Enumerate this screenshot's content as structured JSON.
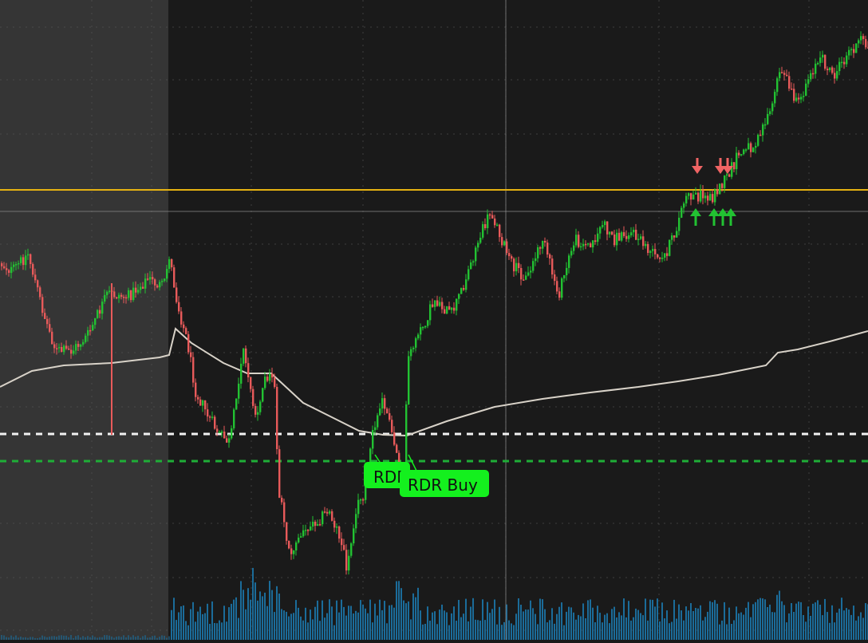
{
  "chart_data": {
    "type": "candlestick",
    "title": "",
    "xlabel": "",
    "ylabel": "",
    "premarket_shaded": true,
    "grid": true,
    "colors": {
      "up": "#22c232",
      "down": "#e85a5a",
      "vwap": "#d8d2c8",
      "resistance": "#e6b212",
      "white_level": "#f2f2f2",
      "green_level": "#1fae37",
      "volume": "#1b6c9a",
      "label_bg": "#14f01e",
      "marker_up": "#22c232",
      "marker_down": "#f06464",
      "crosshair": "#9a9a9a",
      "premarket": "#353535",
      "background": "#1a1a1a"
    },
    "levels": [
      {
        "name": "resistance",
        "style": "solid"
      },
      {
        "name": "white-level",
        "style": "dashed"
      },
      {
        "name": "green-level",
        "style": "dashed"
      }
    ],
    "annotations": [
      {
        "text": "RDR",
        "type": "signal-label"
      },
      {
        "text": "RDR Buy",
        "type": "signal-label"
      }
    ],
    "markers": {
      "down_arrows": 3,
      "up_arrows": 4
    },
    "series": [
      {
        "type": "price"
      },
      {
        "type": "vwap"
      },
      {
        "type": "volume"
      }
    ]
  }
}
